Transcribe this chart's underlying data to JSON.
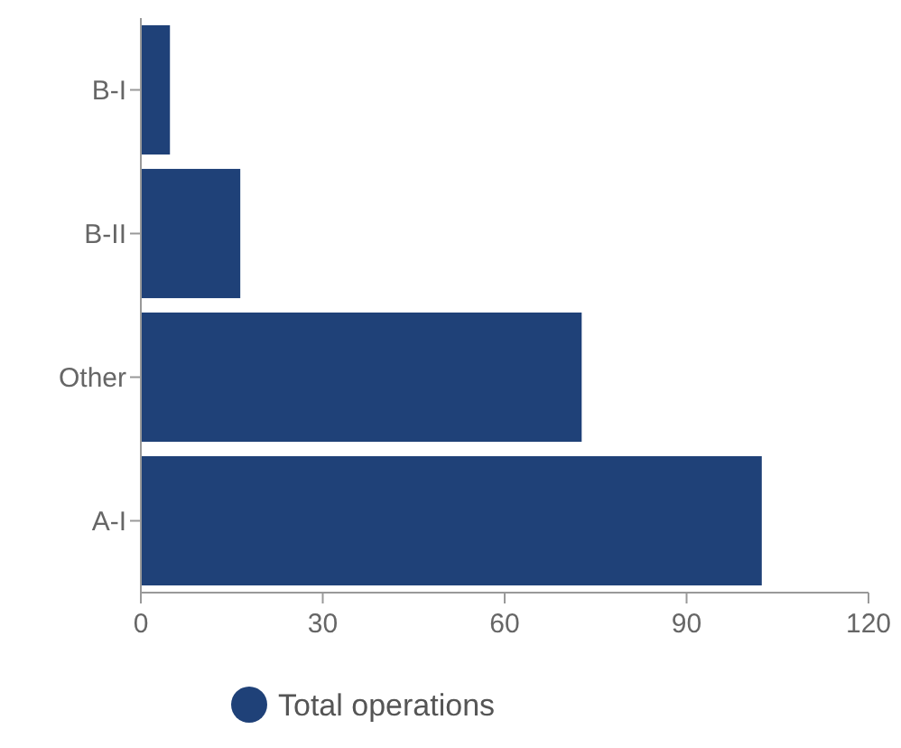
{
  "chart_data": {
    "type": "bar",
    "orientation": "horizontal",
    "categories": [
      "B-I",
      "B-II",
      "Other",
      "A-I"
    ],
    "series": [
      {
        "name": "Total operations",
        "color": "#1f4178",
        "values": [
          4.8,
          16.4,
          72.7,
          102.4
        ]
      }
    ],
    "xlim": [
      0,
      120
    ],
    "xticks": [
      0,
      30,
      60,
      90,
      120
    ],
    "grid": false,
    "legend": "bottom"
  }
}
